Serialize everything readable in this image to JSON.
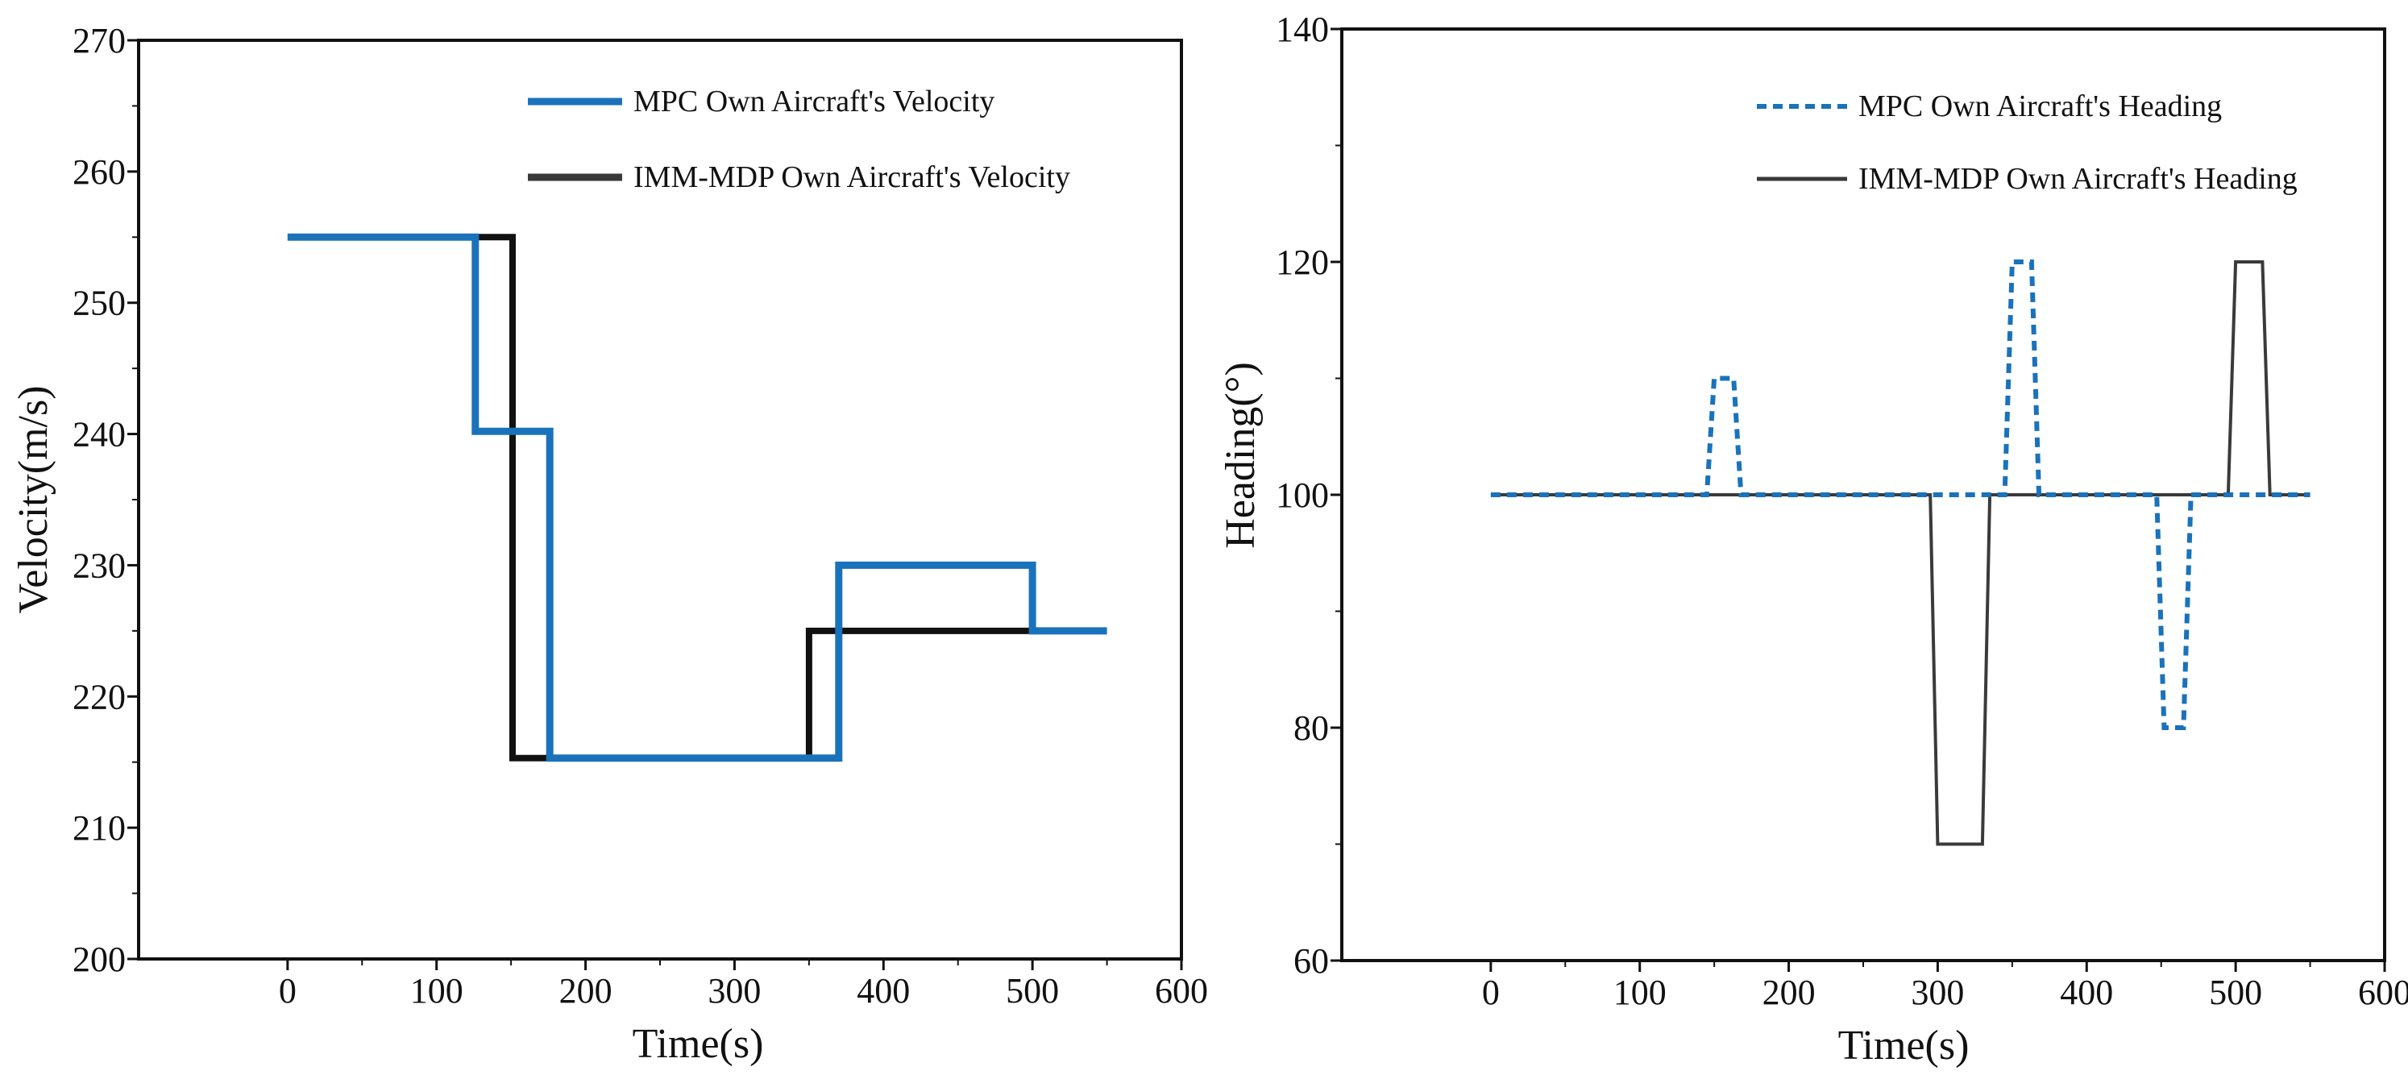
{
  "chart_data": [
    {
      "type": "line",
      "title": "",
      "xlabel": "Time(s)",
      "ylabel": "Velocity(m/s)",
      "xlim": [
        -100,
        600
      ],
      "ylim": [
        200,
        270
      ],
      "xticks": [
        0,
        100,
        200,
        300,
        400,
        500,
        600
      ],
      "yticks": [
        200,
        210,
        220,
        230,
        240,
        250,
        260,
        270
      ],
      "xtick_labels": [
        "0",
        "100",
        "200",
        "300",
        "400",
        "500",
        "600"
      ],
      "ytick_labels": [
        "200",
        "210",
        "220",
        "230",
        "240",
        "250",
        "260",
        "270"
      ],
      "legend_position": "top-right",
      "series": [
        {
          "name": "MPC Own Aircraft's Velocity",
          "color": "#1a72bb",
          "style": "solid",
          "x": [
            0,
            126,
            126,
            176,
            176,
            370,
            370,
            500,
            500,
            550
          ],
          "y": [
            255,
            255,
            240.2,
            240.2,
            215.3,
            215.3,
            230,
            230,
            225,
            225
          ]
        },
        {
          "name": "IMM-MDP Own Aircraft's Velocity",
          "color": "#111111",
          "style": "solid",
          "x": [
            0,
            151,
            151,
            350,
            350,
            500
          ],
          "y": [
            255,
            255,
            215.3,
            215.3,
            225,
            225
          ]
        }
      ]
    },
    {
      "type": "line",
      "title": "",
      "xlabel": "Time(s)",
      "ylabel": "Heading(°)",
      "xlim": [
        -100,
        600
      ],
      "ylim": [
        60,
        140
      ],
      "xticks": [
        0,
        100,
        200,
        300,
        400,
        500,
        600
      ],
      "yticks": [
        60,
        80,
        100,
        120,
        140
      ],
      "xtick_labels": [
        "0",
        "100",
        "200",
        "300",
        "400",
        "500",
        "600"
      ],
      "ytick_labels": [
        "60",
        "80",
        "100",
        "120",
        "140"
      ],
      "legend_position": "top-right",
      "series": [
        {
          "name": "MPC Own Aircraft's Heading",
          "color": "#1a72bb",
          "style": "dashed",
          "x": [
            0,
            145,
            150,
            163,
            168,
            345,
            350,
            363,
            368,
            447,
            452,
            465,
            470,
            550
          ],
          "y": [
            100,
            100,
            110,
            110,
            100,
            100,
            120,
            120,
            100,
            100,
            80,
            80,
            100,
            100
          ]
        },
        {
          "name": "IMM-MDP Own Aircraft's Heading",
          "color": "#3a3a3a",
          "style": "solid",
          "x": [
            0,
            295,
            300,
            330,
            335,
            495,
            500,
            518,
            523,
            550
          ],
          "y": [
            100,
            100,
            70,
            70,
            100,
            100,
            120,
            120,
            100,
            100
          ]
        }
      ]
    }
  ]
}
